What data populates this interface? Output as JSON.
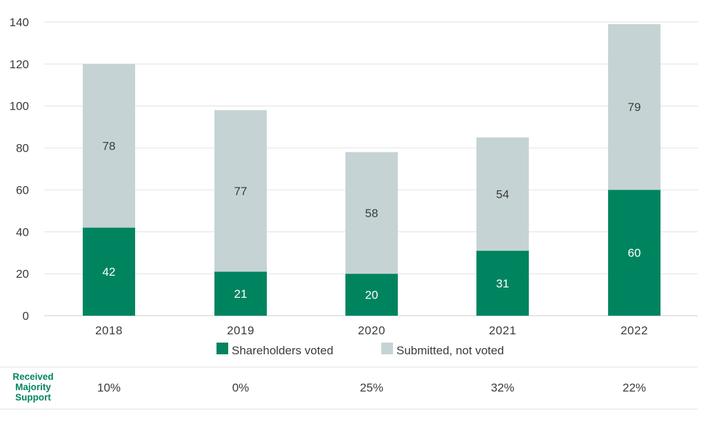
{
  "chart_data": {
    "type": "bar",
    "stacked": true,
    "categories": [
      "2018",
      "2019",
      "2020",
      "2021",
      "2022"
    ],
    "series": [
      {
        "name": "Shareholders voted",
        "values": [
          42,
          21,
          20,
          31,
          60
        ],
        "color": "#00845f",
        "label_color": "#ffffff"
      },
      {
        "name": "Submitted, not voted",
        "values": [
          78,
          77,
          58,
          54,
          79
        ],
        "color": "#c5d3d4",
        "label_color": "#3a3a3a"
      }
    ],
    "ylim": [
      0,
      140
    ],
    "yticks": [
      0,
      20,
      40,
      60,
      80,
      100,
      120,
      140
    ],
    "grid": true,
    "legend_position": "bottom",
    "title": "",
    "xlabel": "",
    "ylabel": ""
  },
  "footer": {
    "label": "Received Majority Support",
    "values": [
      "10%",
      "0%",
      "25%",
      "32%",
      "22%"
    ],
    "label_color": "#00845f"
  }
}
